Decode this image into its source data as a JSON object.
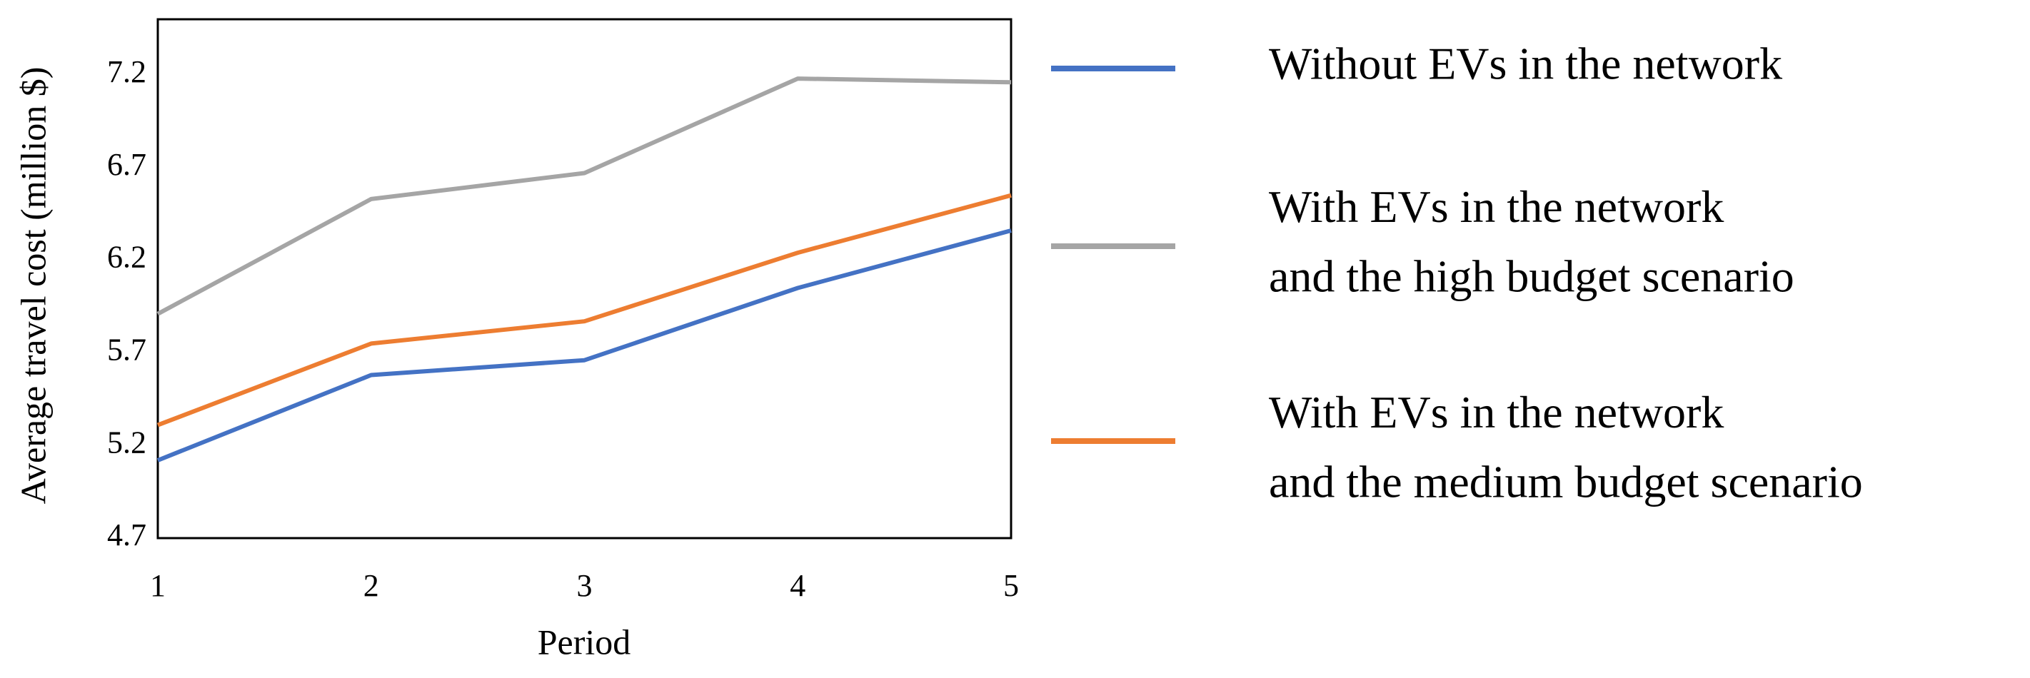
{
  "chart_data": {
    "type": "line",
    "xlabel": "Period",
    "ylabel": "Average travel cost (million $)",
    "x": [
      1,
      2,
      3,
      4,
      5
    ],
    "xlim": [
      1,
      5
    ],
    "xticks": [
      1,
      2,
      3,
      4,
      5
    ],
    "ylim": [
      4.7,
      7.5
    ],
    "yticks": [
      4.7,
      5.2,
      5.7,
      6.2,
      6.7,
      7.2
    ],
    "grid": false,
    "legend": "right",
    "series": [
      {
        "name": "Without EVs in the network",
        "color": "#4472c4",
        "values": [
          5.12,
          5.58,
          5.66,
          6.05,
          6.36
        ]
      },
      {
        "name": "With EVs in the network\nand the high budget scenario",
        "color": "#a5a5a5",
        "values": [
          5.91,
          6.53,
          6.67,
          7.18,
          7.16
        ]
      },
      {
        "name": "With EVs in the network\nand the medium budget scenario",
        "color": "#ed7d31",
        "values": [
          5.31,
          5.75,
          5.87,
          6.24,
          6.55
        ]
      }
    ]
  }
}
